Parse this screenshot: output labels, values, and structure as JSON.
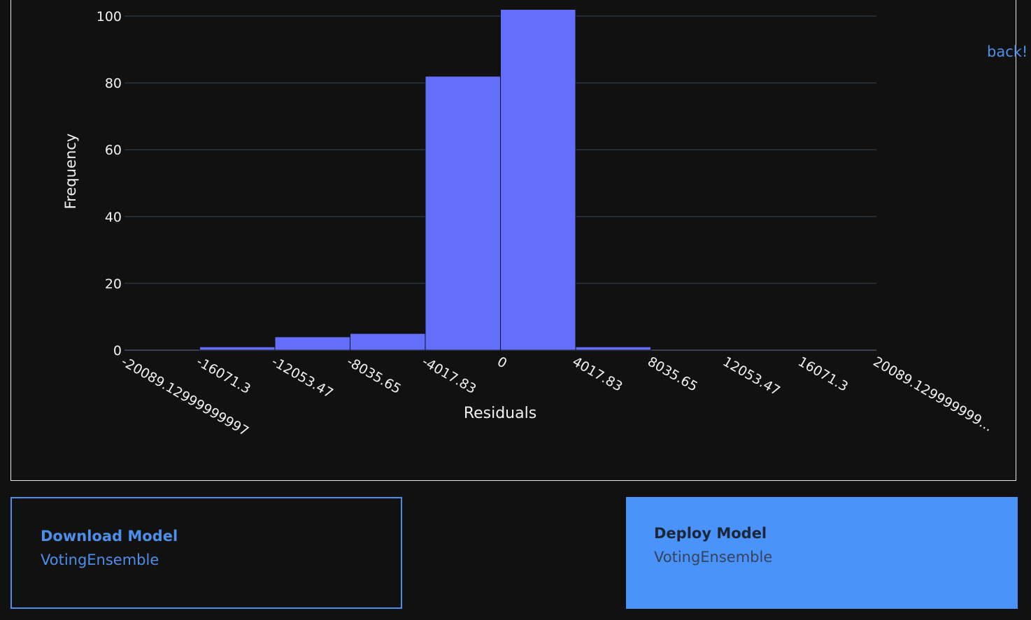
{
  "nav": {
    "back_label": "back!"
  },
  "chart_data": {
    "type": "bar",
    "xlabel": "Residuals",
    "ylabel": "Frequency",
    "xlim": [
      -20089.13,
      20089.13
    ],
    "ylim": [
      0,
      102
    ],
    "yticks": [
      0,
      20,
      40,
      60,
      80,
      100
    ],
    "xtick_labels": [
      "-20089.12999999997",
      "-16071.3",
      "-12053.47",
      "-8035.65",
      "-4017.83",
      "0",
      "4017.83",
      "8035.65",
      "12053.47",
      "16071.3",
      "20089.129999999..."
    ],
    "bins": [
      {
        "x0": -20089.13,
        "x1": -16071.3,
        "count": 0
      },
      {
        "x0": -16071.3,
        "x1": -12053.47,
        "count": 1
      },
      {
        "x0": -12053.47,
        "x1": -8035.65,
        "count": 4
      },
      {
        "x0": -8035.65,
        "x1": -4017.83,
        "count": 5
      },
      {
        "x0": -4017.83,
        "x1": 0,
        "count": 82
      },
      {
        "x0": 0,
        "x1": 4017.83,
        "count": 102
      },
      {
        "x0": 4017.83,
        "x1": 8035.65,
        "count": 1
      },
      {
        "x0": 8035.65,
        "x1": 12053.47,
        "count": 0
      },
      {
        "x0": 12053.47,
        "x1": 16071.3,
        "count": 0
      },
      {
        "x0": 16071.3,
        "x1": 20089.13,
        "count": 0
      }
    ],
    "bar_color": "#636efa",
    "grid": true
  },
  "download_card": {
    "title": "Download Model",
    "subtitle": "VotingEnsemble"
  },
  "deploy_card": {
    "title": "Deploy Model",
    "subtitle": "VotingEnsemble"
  },
  "colors": {
    "background": "#111112",
    "accent": "#4d8fe8",
    "deploy_bg": "#4a93fb",
    "grid": "#2a3442"
  }
}
